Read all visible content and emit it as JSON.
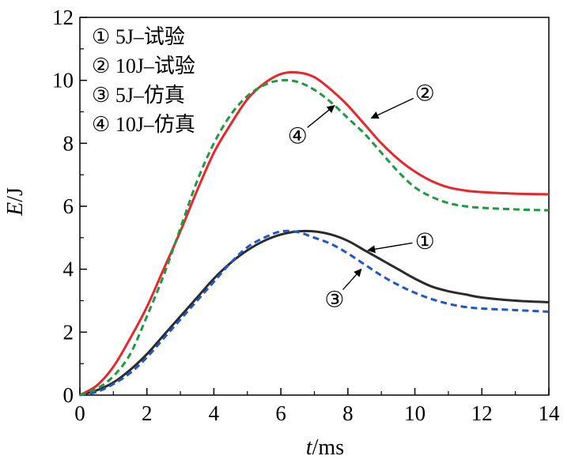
{
  "chart_data": {
    "type": "line",
    "xlabel_italic": "t",
    "xlabel_unit": "/ms",
    "ylabel_italic": "E",
    "ylabel_unit": "/J",
    "xlim": [
      0,
      14
    ],
    "ylim": [
      0,
      12
    ],
    "xticks": [
      0,
      2,
      4,
      6,
      8,
      10,
      12,
      14
    ],
    "yticks": [
      0,
      2,
      4,
      6,
      8,
      10,
      12
    ],
    "grid": false,
    "legend_position": "top-left",
    "legend": [
      {
        "marker": "①",
        "text": "5J–试验"
      },
      {
        "marker": "②",
        "text": "10J–试验"
      },
      {
        "marker": "③",
        "text": "5J–仿真"
      },
      {
        "marker": "④",
        "text": "10J–仿真"
      }
    ],
    "series": [
      {
        "marker": "①",
        "color": "#2b2b2b",
        "dash": "solid",
        "x": [
          0,
          0.5,
          1,
          1.5,
          2,
          2.5,
          3,
          3.5,
          4,
          4.5,
          5,
          5.5,
          6,
          6.5,
          7,
          7.5,
          8,
          8.5,
          9,
          9.5,
          10,
          10.5,
          11,
          11.5,
          12,
          13,
          14
        ],
        "y": [
          0,
          0.15,
          0.4,
          0.8,
          1.3,
          1.9,
          2.5,
          3.1,
          3.7,
          4.2,
          4.6,
          4.9,
          5.1,
          5.2,
          5.2,
          5.1,
          4.9,
          4.6,
          4.3,
          4.0,
          3.7,
          3.45,
          3.3,
          3.2,
          3.1,
          3.0,
          2.95
        ]
      },
      {
        "marker": "②",
        "color": "#e8262b",
        "dash": "solid",
        "x": [
          0,
          0.5,
          1,
          1.5,
          2,
          2.5,
          3,
          3.5,
          4,
          4.5,
          5,
          5.5,
          6,
          6.5,
          7,
          7.5,
          8,
          8.5,
          9,
          9.5,
          10,
          10.5,
          11,
          11.5,
          12,
          13,
          14
        ],
        "y": [
          0,
          0.3,
          0.9,
          1.8,
          2.8,
          4.0,
          5.2,
          6.5,
          7.7,
          8.6,
          9.4,
          9.9,
          10.2,
          10.25,
          10.1,
          9.7,
          9.2,
          8.6,
          8.0,
          7.5,
          7.1,
          6.8,
          6.6,
          6.5,
          6.45,
          6.4,
          6.38
        ]
      },
      {
        "marker": "③",
        "color": "#1f57c8",
        "dash": "dashed",
        "x": [
          0,
          0.5,
          1,
          1.5,
          2,
          2.5,
          3,
          3.5,
          4,
          4.5,
          5,
          5.5,
          6,
          6.5,
          7,
          7.5,
          8,
          8.5,
          9,
          9.5,
          10,
          10.5,
          11,
          11.5,
          12,
          13,
          14
        ],
        "y": [
          0,
          0.1,
          0.35,
          0.7,
          1.2,
          1.8,
          2.4,
          3.0,
          3.6,
          4.2,
          4.7,
          5.0,
          5.2,
          5.18,
          5.0,
          4.8,
          4.5,
          4.15,
          3.8,
          3.5,
          3.25,
          3.05,
          2.9,
          2.8,
          2.75,
          2.7,
          2.65
        ]
      },
      {
        "marker": "④",
        "color": "#1f9a3f",
        "dash": "dashed",
        "x": [
          0,
          0.5,
          1,
          1.5,
          2,
          2.5,
          3,
          3.5,
          4,
          4.5,
          5,
          5.5,
          6,
          6.5,
          7,
          7.5,
          8,
          8.5,
          9,
          9.5,
          10,
          10.5,
          11,
          11.5,
          12,
          13,
          14
        ],
        "y": [
          0,
          0.2,
          0.6,
          1.3,
          2.5,
          3.8,
          5.3,
          6.8,
          8.0,
          8.9,
          9.5,
          9.85,
          10.0,
          9.95,
          9.7,
          9.3,
          8.8,
          8.3,
          7.7,
          7.1,
          6.6,
          6.3,
          6.1,
          6.0,
          5.95,
          5.9,
          5.87
        ]
      }
    ],
    "callouts": [
      {
        "marker": "①",
        "series_index": 0,
        "tip": [
          8.6,
          4.6
        ],
        "label": [
          10.3,
          4.9
        ]
      },
      {
        "marker": "②",
        "series_index": 1,
        "tip": [
          8.7,
          8.8
        ],
        "label": [
          10.3,
          9.6
        ]
      },
      {
        "marker": "③",
        "series_index": 2,
        "tip": [
          8.4,
          4.0
        ],
        "label": [
          7.6,
          3.05
        ]
      },
      {
        "marker": "④",
        "series_index": 3,
        "tip": [
          7.6,
          9.2
        ],
        "label": [
          6.5,
          8.25
        ]
      }
    ]
  }
}
